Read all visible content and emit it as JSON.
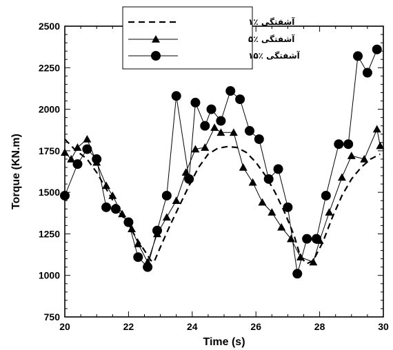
{
  "chart_data": {
    "type": "line",
    "xlabel": "Time (s)",
    "ylabel": "Torque (KN.m)",
    "xlim": [
      20,
      30
    ],
    "ylim": [
      750,
      2500
    ],
    "xticks": [
      20,
      22,
      24,
      26,
      28,
      30
    ],
    "yticks": [
      750,
      1000,
      1250,
      1500,
      1750,
      2000,
      2250,
      2500
    ],
    "legend_position": "top-center",
    "series": [
      {
        "name": "آشفتگی ٪۱",
        "style": "dashed",
        "marker": "none",
        "color": "#000000",
        "points": [
          [
            20.0,
            1820
          ],
          [
            20.3,
            1760
          ],
          [
            20.7,
            1700
          ],
          [
            21.0,
            1620
          ],
          [
            21.3,
            1520
          ],
          [
            21.6,
            1420
          ],
          [
            21.9,
            1330
          ],
          [
            22.2,
            1240
          ],
          [
            22.5,
            1150
          ],
          [
            22.7,
            1090
          ],
          [
            22.8,
            1080
          ],
          [
            23.0,
            1170
          ],
          [
            23.3,
            1300
          ],
          [
            23.6,
            1420
          ],
          [
            23.9,
            1540
          ],
          [
            24.2,
            1650
          ],
          [
            24.5,
            1730
          ],
          [
            24.8,
            1765
          ],
          [
            25.1,
            1775
          ],
          [
            25.4,
            1770
          ],
          [
            25.7,
            1740
          ],
          [
            26.0,
            1680
          ],
          [
            26.3,
            1600
          ],
          [
            26.6,
            1500
          ],
          [
            26.9,
            1380
          ],
          [
            27.2,
            1240
          ],
          [
            27.4,
            1110
          ],
          [
            27.6,
            1070
          ],
          [
            27.8,
            1090
          ],
          [
            28.1,
            1200
          ],
          [
            28.4,
            1350
          ],
          [
            28.7,
            1480
          ],
          [
            29.0,
            1580
          ],
          [
            29.3,
            1650
          ],
          [
            29.6,
            1700
          ],
          [
            29.9,
            1730
          ]
        ]
      },
      {
        "name": "آشفتگی ٪۵",
        "style": "solid",
        "marker": "triangle",
        "color": "#000000",
        "points": [
          [
            20.0,
            1740
          ],
          [
            20.2,
            1700
          ],
          [
            20.4,
            1770
          ],
          [
            20.7,
            1820
          ],
          [
            21.0,
            1680
          ],
          [
            21.3,
            1540
          ],
          [
            21.5,
            1480
          ],
          [
            21.8,
            1370
          ],
          [
            22.1,
            1280
          ],
          [
            22.3,
            1190
          ],
          [
            22.6,
            1080
          ],
          [
            22.9,
            1250
          ],
          [
            23.2,
            1350
          ],
          [
            23.5,
            1450
          ],
          [
            23.8,
            1620
          ],
          [
            24.1,
            1760
          ],
          [
            24.4,
            1770
          ],
          [
            24.7,
            1890
          ],
          [
            24.9,
            1860
          ],
          [
            25.3,
            1860
          ],
          [
            25.6,
            1650
          ],
          [
            25.9,
            1560
          ],
          [
            26.2,
            1440
          ],
          [
            26.5,
            1380
          ],
          [
            26.8,
            1290
          ],
          [
            27.1,
            1220
          ],
          [
            27.4,
            1110
          ],
          [
            27.8,
            1080
          ],
          [
            28.0,
            1210
          ],
          [
            28.3,
            1380
          ],
          [
            28.7,
            1590
          ],
          [
            29.0,
            1720
          ],
          [
            29.4,
            1700
          ],
          [
            29.8,
            1880
          ],
          [
            29.9,
            1780
          ]
        ]
      },
      {
        "name": "آشفتگی ٪۱۵",
        "style": "solid",
        "marker": "circle",
        "color": "#000000",
        "points": [
          [
            20.0,
            1480
          ],
          [
            20.4,
            1670
          ],
          [
            20.7,
            1760
          ],
          [
            21.0,
            1700
          ],
          [
            21.3,
            1410
          ],
          [
            21.6,
            1400
          ],
          [
            22.0,
            1320
          ],
          [
            22.3,
            1110
          ],
          [
            22.6,
            1050
          ],
          [
            22.9,
            1270
          ],
          [
            23.2,
            1480
          ],
          [
            23.5,
            2080
          ],
          [
            23.9,
            1580
          ],
          [
            24.1,
            2040
          ],
          [
            24.4,
            1900
          ],
          [
            24.6,
            2000
          ],
          [
            24.9,
            1930
          ],
          [
            25.2,
            2110
          ],
          [
            25.5,
            2060
          ],
          [
            25.8,
            1870
          ],
          [
            26.1,
            1820
          ],
          [
            26.4,
            1580
          ],
          [
            26.7,
            1640
          ],
          [
            27.0,
            1410
          ],
          [
            27.3,
            1010
          ],
          [
            27.6,
            1220
          ],
          [
            27.9,
            1220
          ],
          [
            28.2,
            1480
          ],
          [
            28.6,
            1790
          ],
          [
            28.9,
            1790
          ],
          [
            29.2,
            2320
          ],
          [
            29.5,
            2220
          ],
          [
            29.8,
            2360
          ]
        ]
      }
    ]
  }
}
